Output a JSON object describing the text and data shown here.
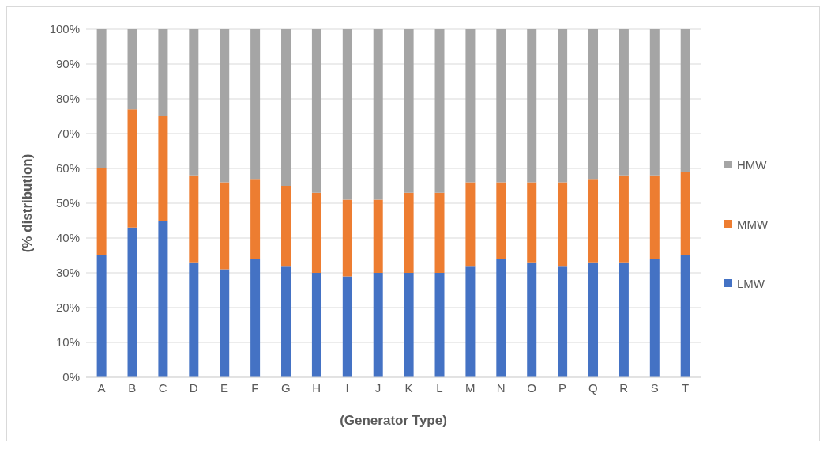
{
  "chart_data": {
    "type": "bar",
    "stacked": true,
    "xlabel": "(Generator Type)",
    "ylabel": "(% distribution)",
    "categories": [
      "A",
      "B",
      "C",
      "D",
      "E",
      "F",
      "G",
      "H",
      "I",
      "J",
      "K",
      "L",
      "M",
      "N",
      "O",
      "P",
      "Q",
      "R",
      "S",
      "T"
    ],
    "series": [
      {
        "name": "LMW",
        "color": "#4472c4",
        "values": [
          35,
          43,
          45,
          33,
          31,
          34,
          32,
          30,
          29,
          30,
          30,
          30,
          32,
          34,
          33,
          32,
          33,
          33,
          34,
          35
        ]
      },
      {
        "name": "MMW",
        "color": "#ed7d31",
        "values": [
          25,
          34,
          30,
          25,
          25,
          23,
          23,
          23,
          22,
          21,
          23,
          23,
          24,
          22,
          23,
          24,
          24,
          25,
          24,
          24
        ]
      },
      {
        "name": "HMW",
        "color": "#a5a5a5",
        "values": [
          40,
          23,
          25,
          42,
          44,
          43,
          45,
          47,
          49,
          49,
          47,
          47,
          44,
          44,
          44,
          44,
          43,
          42,
          42,
          41
        ]
      }
    ],
    "ylim": [
      0,
      100
    ],
    "yticks": [
      {
        "value": 0,
        "label": "0%"
      },
      {
        "value": 10,
        "label": "10%"
      },
      {
        "value": 20,
        "label": "20%"
      },
      {
        "value": 30,
        "label": "30%"
      },
      {
        "value": 40,
        "label": "40%"
      },
      {
        "value": 50,
        "label": "50%"
      },
      {
        "value": 60,
        "label": "60%"
      },
      {
        "value": 70,
        "label": "70%"
      },
      {
        "value": 80,
        "label": "80%"
      },
      {
        "value": 90,
        "label": "90%"
      },
      {
        "value": 100,
        "label": "100%"
      }
    ],
    "grid": "y",
    "legend": "right"
  }
}
